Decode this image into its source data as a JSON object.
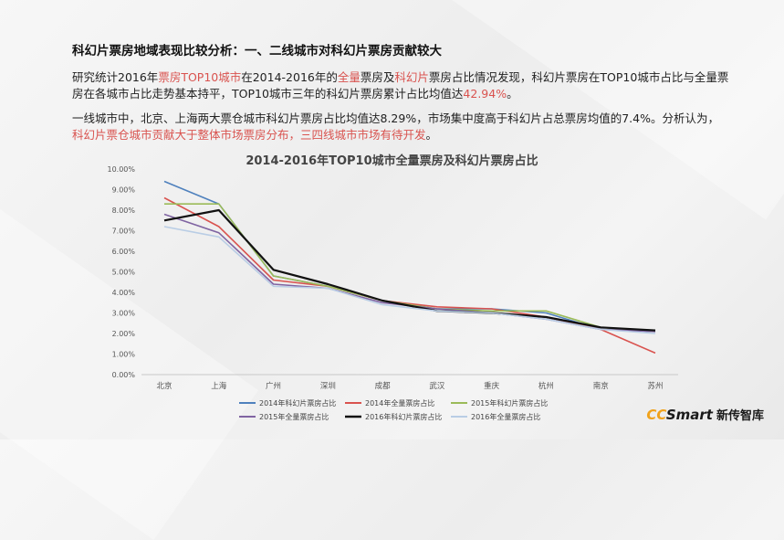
{
  "heading": "科幻片票房地域表现比较分析：一、二线城市对科幻片票房贡献较大",
  "para1": [
    {
      "t": "研究统计2016年",
      "c": ""
    },
    {
      "t": "票房TOP10城市",
      "c": "red"
    },
    {
      "t": "在2014-2016年的",
      "c": ""
    },
    {
      "t": "全量",
      "c": "red"
    },
    {
      "t": "票房及",
      "c": ""
    },
    {
      "t": "科幻片",
      "c": "red"
    },
    {
      "t": "票房占比情况发现，科幻片票房在TOP10城市占比与全量票房在各城市占比走势基本持平，TOP10城市三年的科幻片票房累计占比均值达",
      "c": ""
    },
    {
      "t": "42.94%",
      "c": "red"
    },
    {
      "t": "。",
      "c": ""
    }
  ],
  "para2": [
    {
      "t": "一线城市中，北京、上海两大票仓城市科幻片票房占比均值达8.29%，市场集中度高于科幻片占总票房均值的7.4%。分析认为，",
      "c": ""
    },
    {
      "t": "科幻片票仓城市贡献大于整体市场票房分布，三四线城市市场有待开发",
      "c": "red"
    },
    {
      "t": "。",
      "c": ""
    }
  ],
  "logo": {
    "cc": "CC",
    "smart": "Smart",
    "cn": "新传智库"
  },
  "chart_data": {
    "type": "line",
    "title": "2014-2016年TOP10城市全量票房及科幻片票房占比",
    "categories": [
      "北京",
      "上海",
      "广州",
      "深圳",
      "成都",
      "武汉",
      "重庆",
      "杭州",
      "南京",
      "苏州"
    ],
    "ylim": [
      0,
      10
    ],
    "yticks": [
      "0.00%",
      "1.00%",
      "2.00%",
      "3.00%",
      "4.00%",
      "5.00%",
      "6.00%",
      "7.00%",
      "8.00%",
      "9.00%",
      "10.00%"
    ],
    "grid": false,
    "legend_position": "bottom",
    "series": [
      {
        "name": "2014年科幻片票房占比",
        "color": "#4f81bd",
        "width": 1.6,
        "values": [
          9.4,
          8.3,
          4.8,
          4.3,
          3.6,
          3.2,
          3.2,
          3.0,
          2.2,
          2.1
        ]
      },
      {
        "name": "2014年全量票房占比",
        "color": "#d9534f",
        "width": 1.6,
        "values": [
          8.6,
          7.2,
          4.6,
          4.3,
          3.6,
          3.3,
          3.2,
          2.8,
          2.2,
          1.05
        ]
      },
      {
        "name": "2015年科幻片票房占比",
        "color": "#9bbb59",
        "width": 1.6,
        "values": [
          8.3,
          8.3,
          4.8,
          4.3,
          3.6,
          3.2,
          3.1,
          3.1,
          2.3,
          2.1
        ]
      },
      {
        "name": "2015年全量票房占比",
        "color": "#8064a2",
        "width": 1.6,
        "values": [
          7.8,
          6.9,
          4.4,
          4.2,
          3.5,
          3.2,
          3.0,
          2.7,
          2.2,
          2.1
        ]
      },
      {
        "name": "2016年科幻片票房占比",
        "color": "#111111",
        "width": 2.2,
        "values": [
          7.5,
          8.0,
          5.1,
          4.4,
          3.6,
          3.1,
          3.0,
          2.8,
          2.3,
          2.15
        ]
      },
      {
        "name": "2016年全量票房占比",
        "color": "#b9cde5",
        "width": 1.6,
        "values": [
          7.2,
          6.7,
          4.3,
          4.2,
          3.4,
          3.1,
          3.0,
          2.7,
          2.2,
          2.0
        ]
      }
    ]
  }
}
